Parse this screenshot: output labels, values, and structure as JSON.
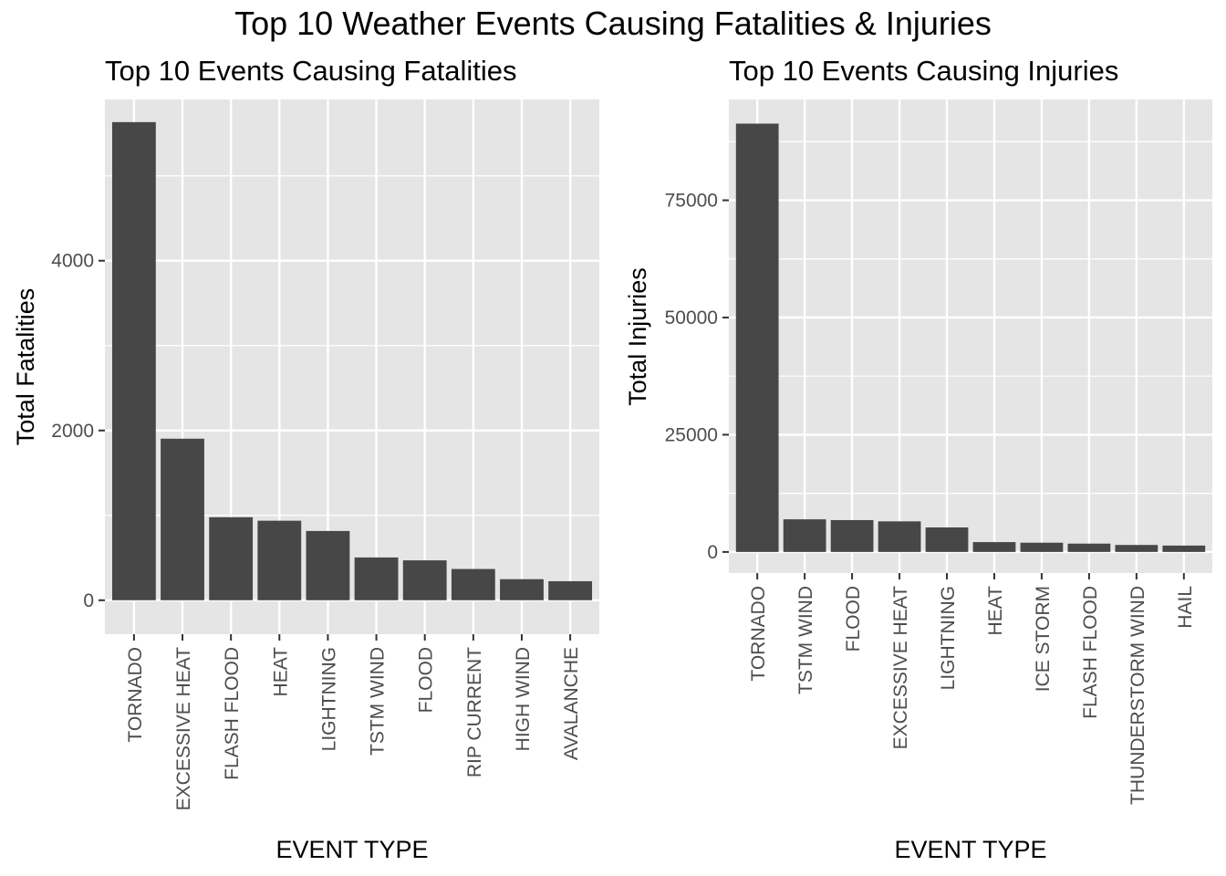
{
  "title": "Top 10 Weather Events Causing Fatalities & Injuries",
  "colors": {
    "panel_background": "#e5e5e5",
    "grid": "#ffffff",
    "bar": "#474747",
    "tick_text": "#4d4d4d",
    "tick_mark": "#333333"
  },
  "chart_data": [
    {
      "type": "bar",
      "title": "Top 10 Events Causing Fatalities",
      "xlabel": "EVENT TYPE",
      "ylabel": "Total Fatalities",
      "categories": [
        "TORNADO",
        "EXCESSIVE HEAT",
        "FLASH FLOOD",
        "HEAT",
        "LIGHTNING",
        "TSTM WIND",
        "FLOOD",
        "RIP CURRENT",
        "HIGH WIND",
        "AVALANCHE"
      ],
      "values": [
        5633,
        1903,
        978,
        937,
        816,
        504,
        470,
        368,
        248,
        224
      ],
      "ylim": [
        -400,
        5900
      ],
      "yticks": [
        0,
        2000,
        4000
      ],
      "yticks_minor": [
        1000,
        3000,
        5000
      ],
      "grid": true
    },
    {
      "type": "bar",
      "title": "Top 10 Events Causing Injuries",
      "xlabel": "EVENT TYPE",
      "ylabel": "Total Injuries",
      "categories": [
        "TORNADO",
        "TSTM WIND",
        "FLOOD",
        "EXCESSIVE HEAT",
        "LIGHTNING",
        "HEAT",
        "ICE STORM",
        "FLASH FLOOD",
        "THUNDERSTORM WIND",
        "HAIL"
      ],
      "values": [
        91346,
        6957,
        6789,
        6525,
        5230,
        2100,
        1975,
        1777,
        1488,
        1361
      ],
      "ylim": [
        -4500,
        96500
      ],
      "yticks": [
        0,
        25000,
        50000,
        75000
      ],
      "yticks_minor": [
        12500,
        37500,
        62500,
        87500
      ],
      "grid": true
    }
  ]
}
